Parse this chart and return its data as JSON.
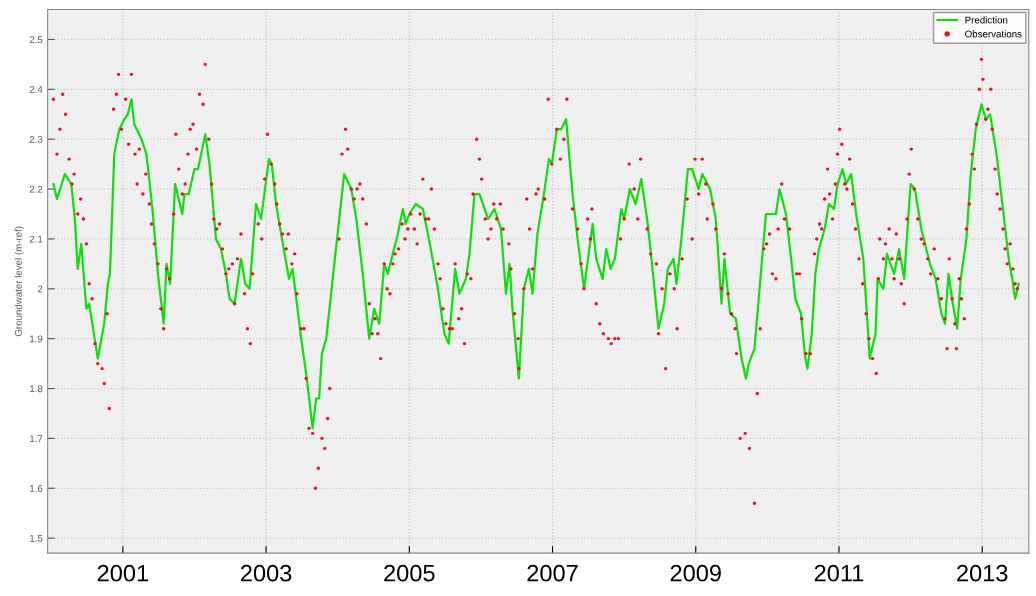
{
  "chart_data": {
    "type": "line",
    "ylabel": "Groundwater level (m-ref)",
    "xlim": [
      1999.95,
      2013.65
    ],
    "ylim": [
      1.47,
      2.56
    ],
    "xticks": [
      2001,
      2003,
      2005,
      2007,
      2009,
      2011,
      2013
    ],
    "yticks": [
      1.5,
      1.6,
      1.7,
      1.8,
      1.9,
      2,
      2.1,
      2.2,
      2.3,
      2.4,
      2.5
    ],
    "grid": true,
    "legend": "top right",
    "series": [
      {
        "name": "Prediction",
        "color": "#11dd11",
        "marker": "none",
        "line_style": "solid",
        "x": [
          2000.03,
          2000.08,
          2000.19,
          2000.28,
          2000.33,
          2000.37,
          2000.42,
          2000.49,
          2000.53,
          2000.65,
          2000.74,
          2000.79,
          2000.82,
          2000.88,
          2000.95,
          2001.02,
          2001.07,
          2001.12,
          2001.16,
          2001.26,
          2001.33,
          2001.42,
          2001.49,
          2001.57,
          2001.61,
          2001.66,
          2001.73,
          2001.83,
          2001.86,
          2001.92,
          2002.0,
          2002.05,
          2002.15,
          2002.21,
          2002.3,
          2002.37,
          2002.44,
          2002.49,
          2002.56,
          2002.65,
          2002.71,
          2002.77,
          2002.86,
          2002.93,
          2003.04,
          2003.08,
          2003.14,
          2003.21,
          2003.32,
          2003.37,
          2003.49,
          2003.56,
          2003.65,
          2003.7,
          2003.74,
          2003.78,
          2003.84,
          2003.93,
          2004.09,
          2004.19,
          2004.26,
          2004.35,
          2004.44,
          2004.51,
          2004.58,
          2004.65,
          2004.7,
          2004.77,
          2004.84,
          2004.91,
          2004.95,
          2005.0,
          2005.09,
          2005.19,
          2005.3,
          2005.4,
          2005.49,
          2005.55,
          2005.64,
          2005.7,
          2005.79,
          2005.84,
          2005.91,
          2005.98,
          2006.1,
          2006.19,
          2006.28,
          2006.35,
          2006.4,
          2006.44,
          2006.53,
          2006.6,
          2006.67,
          2006.72,
          2006.79,
          2006.89,
          2006.95,
          2006.99,
          2007.06,
          2007.12,
          2007.19,
          2007.28,
          2007.35,
          2007.44,
          2007.56,
          2007.61,
          2007.7,
          2007.75,
          2007.81,
          2007.87,
          2007.96,
          2008.0,
          2008.08,
          2008.16,
          2008.24,
          2008.33,
          2008.41,
          2008.48,
          2008.56,
          2008.61,
          2008.69,
          2008.73,
          2008.8,
          2008.89,
          2008.95,
          2009.04,
          2009.09,
          2009.2,
          2009.28,
          2009.36,
          2009.4,
          2009.48,
          2009.56,
          2009.64,
          2009.7,
          2009.74,
          2009.82,
          2009.98,
          2010.05,
          2010.12,
          2010.17,
          2010.26,
          2010.34,
          2010.39,
          2010.47,
          2010.53,
          2010.56,
          2010.62,
          2010.67,
          2010.72,
          2010.8,
          2010.86,
          2010.93,
          2010.98,
          2011.05,
          2011.1,
          2011.17,
          2011.24,
          2011.34,
          2011.43,
          2011.51,
          2011.54,
          2011.62,
          2011.67,
          2011.77,
          2011.84,
          2011.91,
          2012.0,
          2012.06,
          2012.15,
          2012.27,
          2012.35,
          2012.43,
          2012.48,
          2012.53,
          2012.59,
          2012.65,
          2012.7,
          2012.78,
          2012.84,
          2012.91,
          2012.99,
          2013.05,
          2013.11,
          2013.2,
          2013.29,
          2013.37,
          2013.42,
          2013.46,
          2013.51
        ],
        "values": [
          2.21,
          2.18,
          2.23,
          2.21,
          2.14,
          2.04,
          2.09,
          1.96,
          1.97,
          1.86,
          1.93,
          2.01,
          2.03,
          2.27,
          2.32,
          2.34,
          2.35,
          2.38,
          2.33,
          2.3,
          2.27,
          2.15,
          2.03,
          1.93,
          2.05,
          2.01,
          2.21,
          2.15,
          2.19,
          2.19,
          2.24,
          2.24,
          2.31,
          2.25,
          2.1,
          2.08,
          2.03,
          1.98,
          1.97,
          2.06,
          2.01,
          2.0,
          2.17,
          2.14,
          2.26,
          2.25,
          2.17,
          2.11,
          2.02,
          2.04,
          1.9,
          1.83,
          1.72,
          1.78,
          1.78,
          1.87,
          1.9,
          2.02,
          2.23,
          2.2,
          2.14,
          2.03,
          1.9,
          1.96,
          1.93,
          2.05,
          2.03,
          2.07,
          2.11,
          2.16,
          2.13,
          2.15,
          2.17,
          2.16,
          2.08,
          2.0,
          1.91,
          1.89,
          2.04,
          1.99,
          2.02,
          2.07,
          2.19,
          2.19,
          2.14,
          2.16,
          2.12,
          1.99,
          2.05,
          1.96,
          1.82,
          2.0,
          2.04,
          1.99,
          2.11,
          2.2,
          2.26,
          2.25,
          2.32,
          2.32,
          2.34,
          2.19,
          2.1,
          2.0,
          2.13,
          2.06,
          2.02,
          2.08,
          2.04,
          2.06,
          2.16,
          2.14,
          2.2,
          2.17,
          2.22,
          2.13,
          2.02,
          1.92,
          1.97,
          2.04,
          2.06,
          2.01,
          2.1,
          2.24,
          2.24,
          2.2,
          2.23,
          2.2,
          2.14,
          1.97,
          2.06,
          1.95,
          1.94,
          1.86,
          1.82,
          1.85,
          1.88,
          2.15,
          2.15,
          2.15,
          2.2,
          2.15,
          2.05,
          1.98,
          1.95,
          1.86,
          1.84,
          1.91,
          2.03,
          2.08,
          2.12,
          2.17,
          2.16,
          2.21,
          2.24,
          2.21,
          2.23,
          2.15,
          2.06,
          1.86,
          1.91,
          2.02,
          2.0,
          2.07,
          2.03,
          2.08,
          2.02,
          2.21,
          2.2,
          2.12,
          2.05,
          2.02,
          1.95,
          1.93,
          2.03,
          1.97,
          1.92,
          2.02,
          2.1,
          2.23,
          2.32,
          2.37,
          2.34,
          2.35,
          2.27,
          2.16,
          2.06,
          2.02,
          1.98,
          2.01
        ]
      },
      {
        "name": "Observations",
        "type": "scatter",
        "color": "#ee1122",
        "marker": "circle",
        "x": [
          2000.03,
          2000.08,
          2000.12,
          2000.16,
          2000.2,
          2000.25,
          2000.29,
          2000.32,
          2000.37,
          2000.41,
          2000.45,
          2000.49,
          2000.53,
          2000.57,
          2000.61,
          2000.65,
          2000.71,
          2000.74,
          2000.78,
          2000.81,
          2000.87,
          2000.91,
          2000.94,
          2000.98,
          2001.04,
          2001.08,
          2001.12,
          2001.17,
          2001.2,
          2001.23,
          2001.28,
          2001.32,
          2001.37,
          2001.4,
          2001.44,
          2001.49,
          2001.53,
          2001.57,
          2001.61,
          2001.65,
          2001.71,
          2001.74,
          2001.78,
          2001.83,
          2001.87,
          2001.91,
          2001.94,
          2001.98,
          2002.03,
          2002.07,
          2002.12,
          2002.15,
          2002.2,
          2002.24,
          2002.27,
          2002.31,
          2002.35,
          2002.39,
          2002.44,
          2002.48,
          2002.53,
          2002.56,
          2002.6,
          2002.65,
          2002.7,
          2002.74,
          2002.78,
          2002.81,
          2002.89,
          2002.94,
          2002.98,
          2003.02,
          2003.07,
          2003.12,
          2003.15,
          2003.19,
          2003.23,
          2003.28,
          2003.31,
          2003.36,
          2003.4,
          2003.43,
          2003.49,
          2003.53,
          2003.56,
          2003.6,
          2003.65,
          2003.69,
          2003.73,
          2003.78,
          2003.82,
          2003.86,
          2003.89,
          2004.02,
          2004.06,
          2004.11,
          2004.14,
          2004.19,
          2004.23,
          2004.27,
          2004.31,
          2004.35,
          2004.4,
          2004.44,
          2004.48,
          2004.52,
          2004.56,
          2004.6,
          2004.65,
          2004.69,
          2004.73,
          2004.77,
          2004.8,
          2004.85,
          2004.9,
          2004.94,
          2004.98,
          2005.02,
          2005.07,
          2005.11,
          2005.15,
          2005.19,
          2005.23,
          2005.27,
          2005.31,
          2005.35,
          2005.4,
          2005.43,
          2005.47,
          2005.51,
          2005.56,
          2005.6,
          2005.64,
          2005.69,
          2005.73,
          2005.77,
          2005.81,
          2005.86,
          2005.89,
          2005.94,
          2005.98,
          2006.01,
          2006.06,
          2006.1,
          2006.14,
          2006.18,
          2006.22,
          2006.27,
          2006.31,
          2006.39,
          2006.42,
          2006.47,
          2006.52,
          2006.53,
          2006.6,
          2006.64,
          2006.68,
          2006.72,
          2006.77,
          2006.8,
          2006.89,
          2006.94,
          2006.99,
          2007.06,
          2007.11,
          2007.16,
          2007.2,
          2007.28,
          2007.35,
          2007.4,
          2007.44,
          2007.49,
          2007.53,
          2007.55,
          2007.61,
          2007.66,
          2007.71,
          2007.78,
          2007.82,
          2007.87,
          2007.92,
          2007.95,
          2008.0,
          2008.07,
          2008.14,
          2008.19,
          2008.23,
          2008.32,
          2008.37,
          2008.45,
          2008.48,
          2008.53,
          2008.58,
          2008.64,
          2008.7,
          2008.74,
          2008.81,
          2008.88,
          2008.95,
          2008.99,
          2009.04,
          2009.09,
          2009.14,
          2009.16,
          2009.24,
          2009.28,
          2009.36,
          2009.4,
          2009.45,
          2009.5,
          2009.55,
          2009.57,
          2009.62,
          2009.69,
          2009.75,
          2009.82,
          2009.86,
          2009.9,
          2009.95,
          2009.99,
          2010.03,
          2010.07,
          2010.12,
          2010.15,
          2010.2,
          2010.24,
          2010.31,
          2010.41,
          2010.45,
          2010.48,
          2010.54,
          2010.6,
          2010.66,
          2010.69,
          2010.73,
          2010.76,
          2010.8,
          2010.84,
          2010.87,
          2010.91,
          2010.95,
          2010.98,
          2011.01,
          2011.04,
          2011.08,
          2011.11,
          2011.15,
          2011.19,
          2011.23,
          2011.28,
          2011.33,
          2011.38,
          2011.42,
          2011.47,
          2011.52,
          2011.55,
          2011.57,
          2011.62,
          2011.65,
          2011.7,
          2011.74,
          2011.77,
          2011.8,
          2011.84,
          2011.87,
          2011.91,
          2011.95,
          2011.98,
          2012.01,
          2012.05,
          2012.1,
          2012.15,
          2012.19,
          2012.24,
          2012.28,
          2012.33,
          2012.38,
          2012.43,
          2012.48,
          2012.51,
          2012.54,
          2012.58,
          2012.62,
          2012.64,
          2012.68,
          2012.71,
          2012.75,
          2012.78,
          2012.82,
          2012.86,
          2012.89,
          2012.92,
          2012.96,
          2012.99,
          2013.01,
          2013.05,
          2013.08,
          2013.12,
          2013.14,
          2013.18,
          2013.21,
          2013.25,
          2013.29,
          2013.32,
          2013.35,
          2013.39,
          2013.43,
          2013.46,
          2013.49
        ],
        "values": [
          2.38,
          2.27,
          2.32,
          2.39,
          2.35,
          2.26,
          2.21,
          2.23,
          2.15,
          2.18,
          2.14,
          2.09,
          2.01,
          1.98,
          1.89,
          1.85,
          1.84,
          1.81,
          1.95,
          1.76,
          2.36,
          2.39,
          2.43,
          2.32,
          2.38,
          2.29,
          2.43,
          2.27,
          2.21,
          2.28,
          2.19,
          2.23,
          2.17,
          2.13,
          2.09,
          2.05,
          1.96,
          1.92,
          2.04,
          2.02,
          2.15,
          2.31,
          2.24,
          2.19,
          2.21,
          2.27,
          2.32,
          2.33,
          2.28,
          2.39,
          2.37,
          2.45,
          2.3,
          2.21,
          2.14,
          2.12,
          2.13,
          2.08,
          2.03,
          2.04,
          2.05,
          1.97,
          2.06,
          2.11,
          1.99,
          1.92,
          1.89,
          2.03,
          2.13,
          2.1,
          2.22,
          2.31,
          2.25,
          2.21,
          2.17,
          2.13,
          2.11,
          2.08,
          2.11,
          2.05,
          2.07,
          1.99,
          1.92,
          1.92,
          1.82,
          1.72,
          1.71,
          1.6,
          1.64,
          1.7,
          1.68,
          1.74,
          1.8,
          2.1,
          2.27,
          2.32,
          2.28,
          2.2,
          2.18,
          2.2,
          2.21,
          2.18,
          2.13,
          1.97,
          1.91,
          1.94,
          1.91,
          1.86,
          2.05,
          2.0,
          1.99,
          2.05,
          2.07,
          2.08,
          2.13,
          2.1,
          2.12,
          2.15,
          2.12,
          2.09,
          2.15,
          2.22,
          2.14,
          2.14,
          2.2,
          2.12,
          2.05,
          2.02,
          1.96,
          1.93,
          1.92,
          1.92,
          2.05,
          1.94,
          1.96,
          1.89,
          2.03,
          2.02,
          2.19,
          2.3,
          2.26,
          2.22,
          2.14,
          2.1,
          2.12,
          2.17,
          2.14,
          2.17,
          2.12,
          2.09,
          2.04,
          1.95,
          1.9,
          1.84,
          2.0,
          2.18,
          2.12,
          2.04,
          2.19,
          2.2,
          2.18,
          2.38,
          2.25,
          2.32,
          2.26,
          2.3,
          2.38,
          2.16,
          2.12,
          2.05,
          2.0,
          2.14,
          2.1,
          2.16,
          1.97,
          1.93,
          1.91,
          1.9,
          1.89,
          1.9,
          1.9,
          2.1,
          2.14,
          2.25,
          2.2,
          2.14,
          2.26,
          2.12,
          2.07,
          2.05,
          1.91,
          2.0,
          1.84,
          2.03,
          2.0,
          1.92,
          2.06,
          2.18,
          2.1,
          2.26,
          2.19,
          2.26,
          2.21,
          2.14,
          2.17,
          2.12,
          2.0,
          2.07,
          1.99,
          1.95,
          1.92,
          1.87,
          1.7,
          1.71,
          1.68,
          1.57,
          1.79,
          1.92,
          2.08,
          2.09,
          2.11,
          2.03,
          2.02,
          2.12,
          2.21,
          2.14,
          2.12,
          2.03,
          2.03,
          1.94,
          1.87,
          1.87,
          2.07,
          2.1,
          2.13,
          2.12,
          2.18,
          2.24,
          2.19,
          2.14,
          2.21,
          2.27,
          2.32,
          2.29,
          2.21,
          2.2,
          2.26,
          2.17,
          2.12,
          2.06,
          2.01,
          1.95,
          1.9,
          1.86,
          1.83,
          2.02,
          2.1,
          2.06,
          2.09,
          2.12,
          2.06,
          2.02,
          2.11,
          2.06,
          2.01,
          1.97,
          2.14,
          2.23,
          2.28,
          2.2,
          2.14,
          2.1,
          2.09,
          2.06,
          2.03,
          2.08,
          2.02,
          1.98,
          1.94,
          1.88,
          2.06,
          1.98,
          1.93,
          1.88,
          2.02,
          1.98,
          1.94,
          2.12,
          2.17,
          2.27,
          2.24,
          2.33,
          2.4,
          2.46,
          2.42,
          2.34,
          2.36,
          2.4,
          2.32,
          2.24,
          2.19,
          2.16,
          2.12,
          2.08,
          2.05,
          2.09,
          2.04,
          2.01,
          2.0
        ]
      }
    ]
  }
}
